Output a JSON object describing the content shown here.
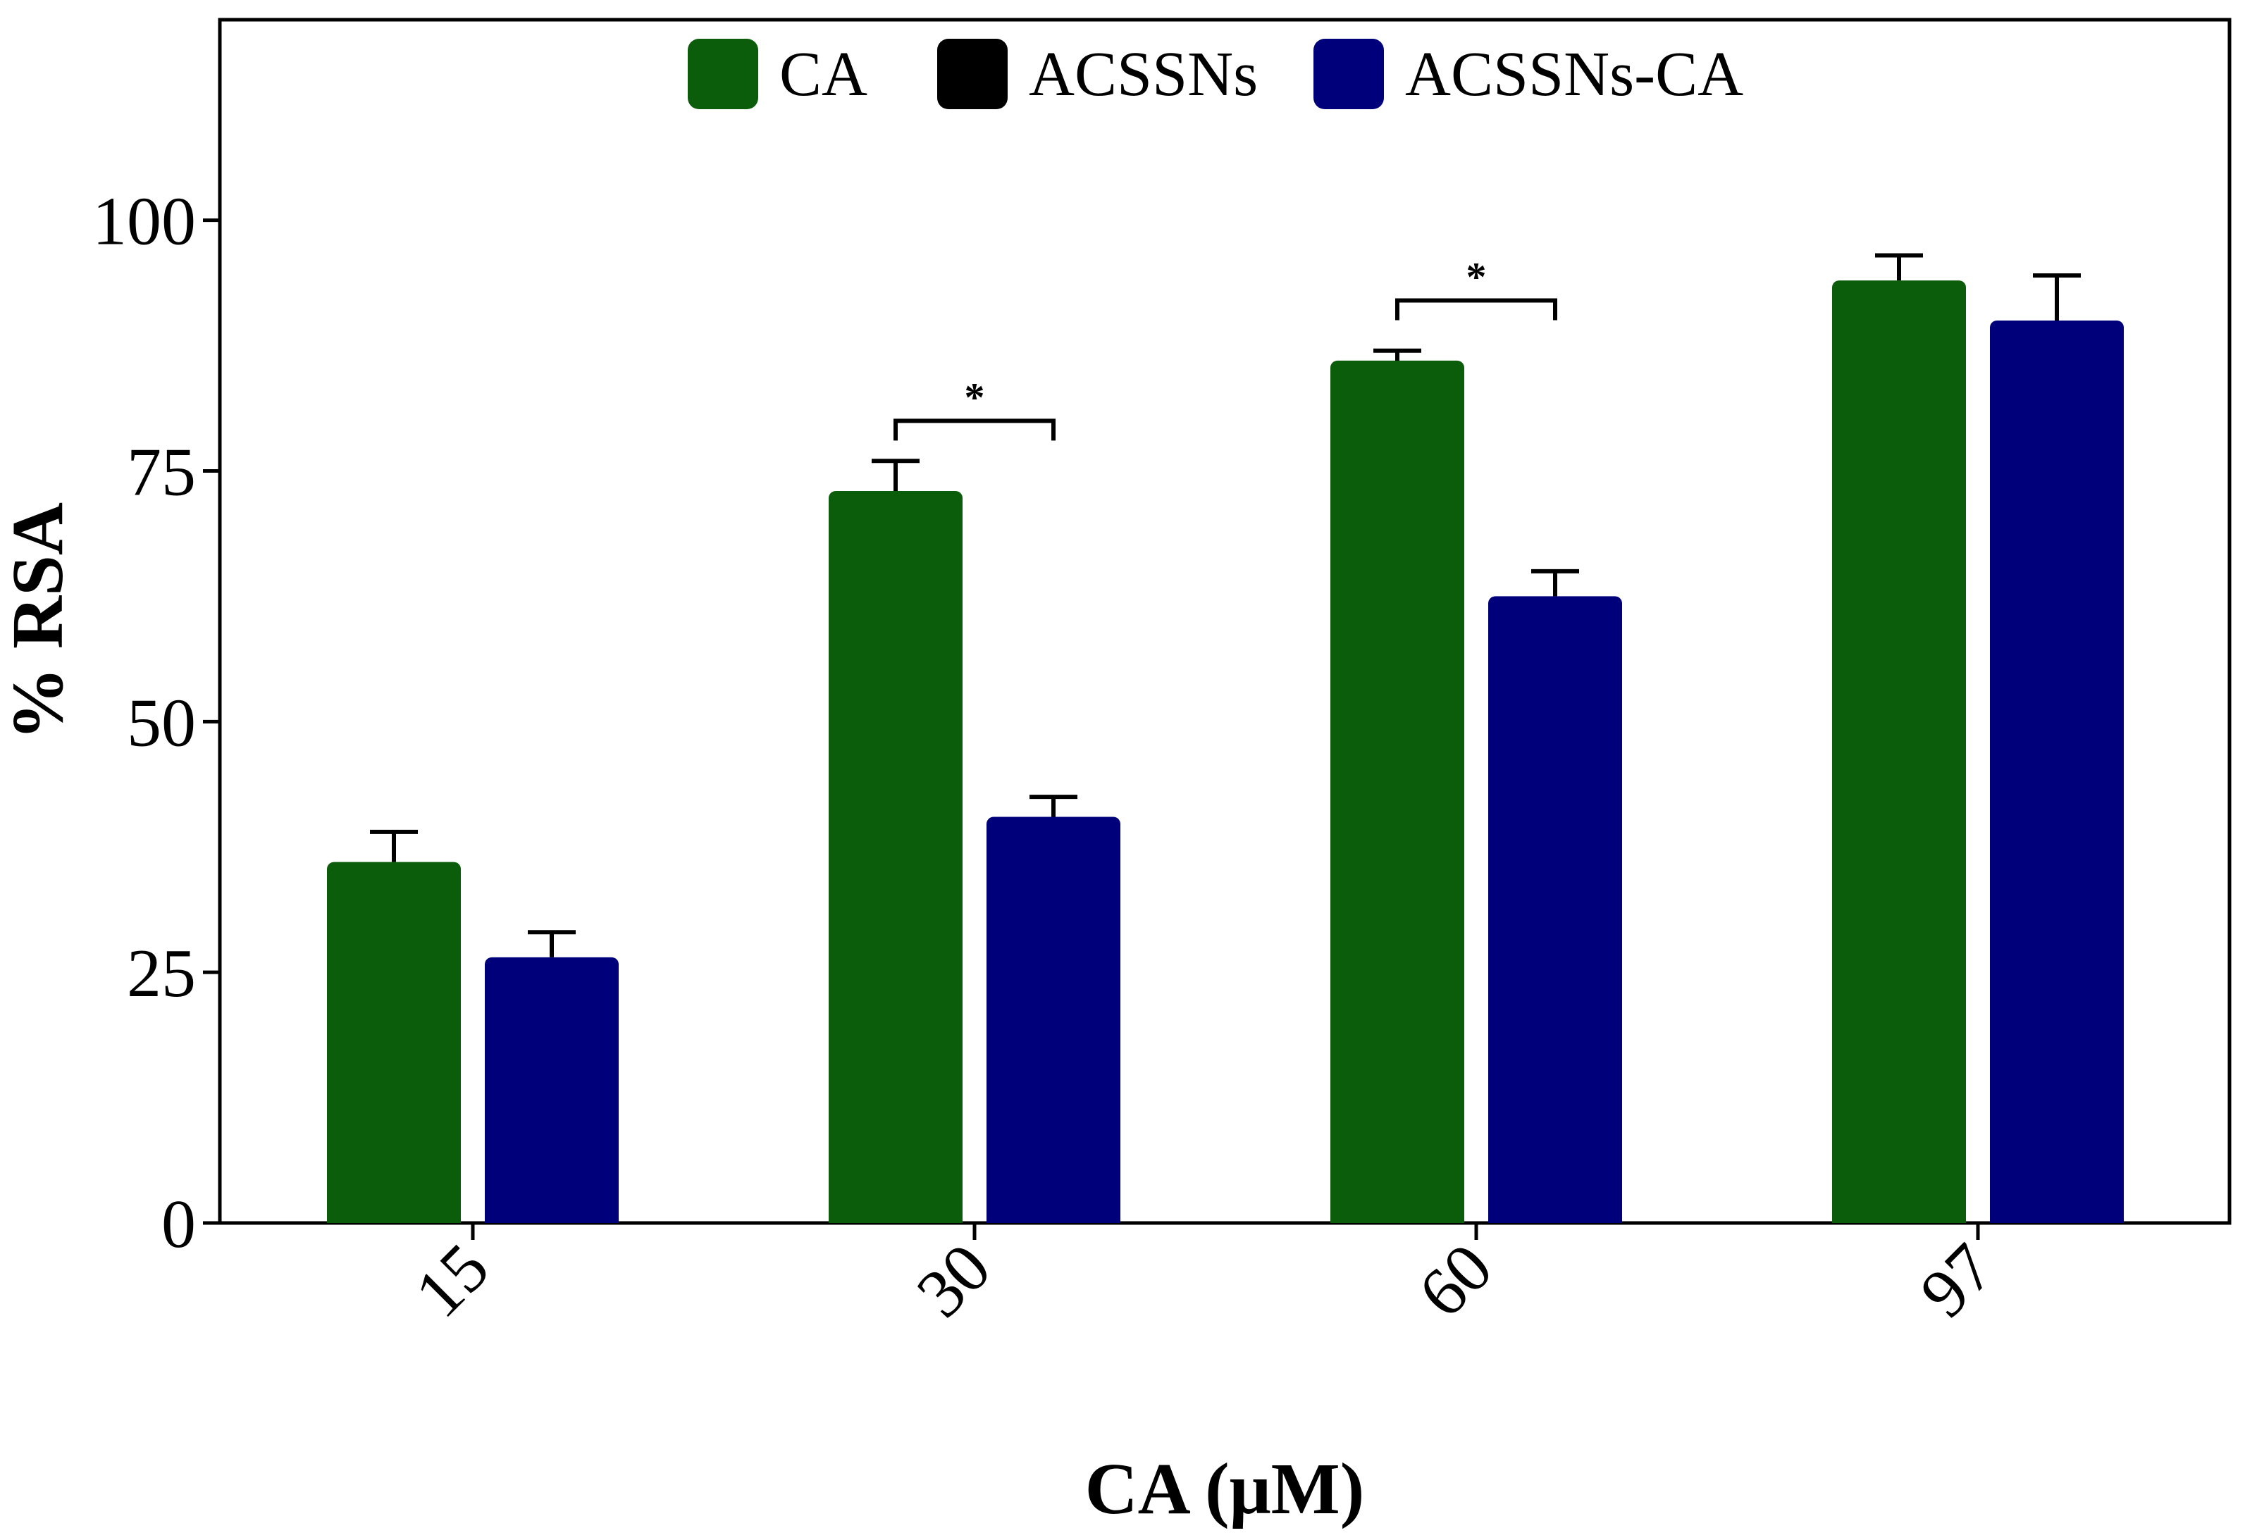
{
  "chart_data": {
    "type": "bar",
    "xlabel": "CA (μM)",
    "ylabel": "% RSA",
    "ylim": [
      0,
      120
    ],
    "yticks": [
      0,
      25,
      50,
      75,
      100
    ],
    "ytick_labels": [
      "0",
      "25",
      "50",
      "75",
      "100"
    ],
    "categories": [
      "15",
      "30",
      "60",
      "97"
    ],
    "legend_position": "top-center",
    "series": [
      {
        "name": "CA",
        "color": "#0b5c0b",
        "values": [
          36,
          73,
          86,
          94
        ],
        "errors": [
          3,
          3,
          1,
          2.5
        ]
      },
      {
        "name": "ACSSNs",
        "color": "#000000",
        "values": [
          0,
          0,
          0,
          0
        ],
        "errors": [
          0,
          0,
          0,
          0
        ]
      },
      {
        "name": "ACSSNs-CA",
        "color": "#00007a",
        "values": [
          26.5,
          40.5,
          62.5,
          90
        ],
        "errors": [
          2.5,
          2,
          2.5,
          4.5
        ]
      }
    ],
    "significance": [
      {
        "category": "30",
        "label": "*",
        "y": 80
      },
      {
        "category": "60",
        "label": "*",
        "y": 92
      }
    ]
  }
}
